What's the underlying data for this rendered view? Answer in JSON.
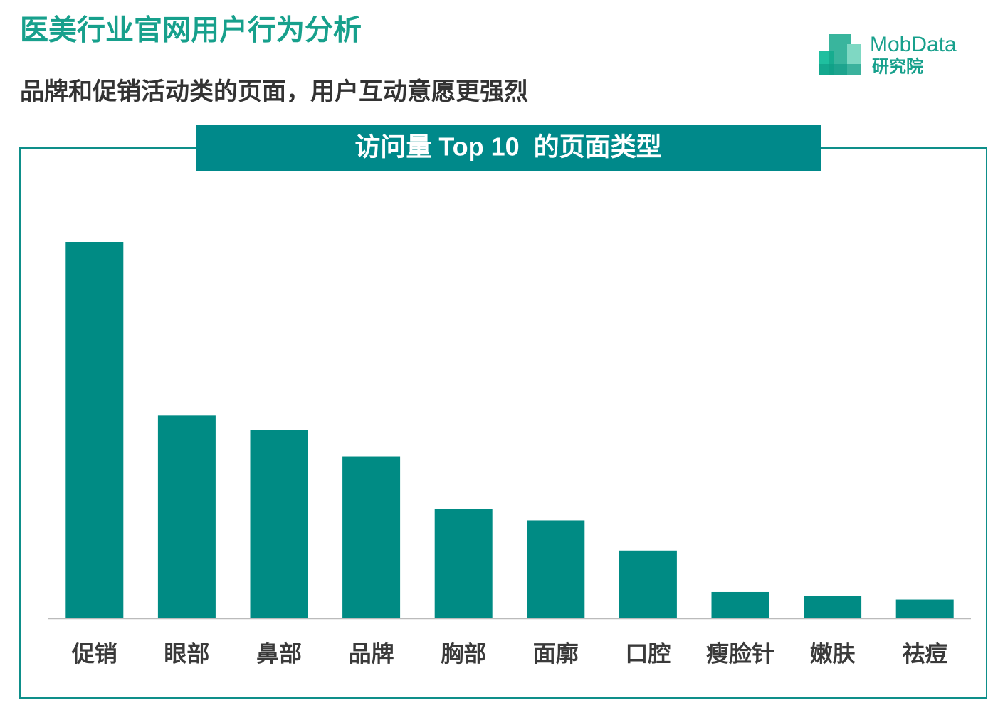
{
  "page": {
    "title": "医美行业官网用户行为分析",
    "subtitle": "品牌和促销活动类的页面，用户互动意愿更强烈",
    "logo_name": "MobData",
    "logo_sub": "研究院"
  },
  "chart_data": {
    "type": "bar",
    "title": "访问量 Top 10  的页面类型",
    "categories": [
      "促销",
      "眼部",
      "鼻部",
      "品牌",
      "胸部",
      "面廓",
      "口腔",
      "瘦脸针",
      "嫩肤",
      "祛痘"
    ],
    "values": [
      100,
      54,
      50,
      43,
      29,
      26,
      18,
      7,
      6,
      5
    ],
    "color": "#008b84",
    "ylim": [
      0,
      100
    ],
    "grid": false
  }
}
